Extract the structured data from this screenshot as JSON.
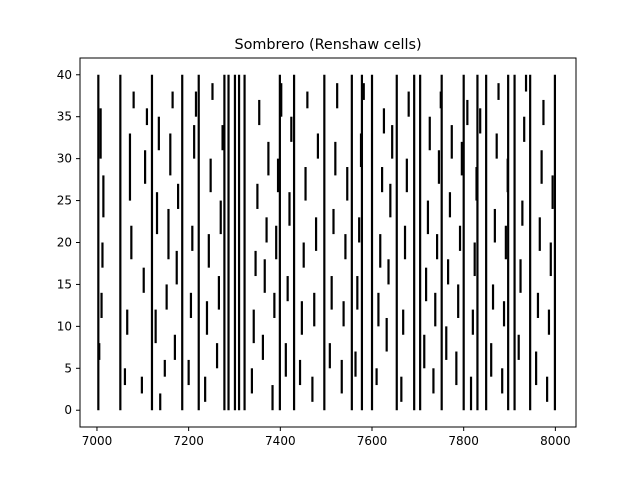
{
  "chart_data": {
    "type": "scatter",
    "marker": "vertical-line",
    "title": "Sombrero (Renshaw cells)",
    "xlabel": "",
    "ylabel": "",
    "xlim": [
      6963,
      8045
    ],
    "ylim": [
      -2,
      42
    ],
    "xticks": [
      7000,
      7200,
      7400,
      7600,
      7800,
      8000
    ],
    "yticks": [
      0,
      5,
      10,
      15,
      20,
      25,
      30,
      35,
      40
    ],
    "grid": false,
    "legend": "none",
    "color": "#000000",
    "events_per_neuron_line": [
      {
        "neurons": [
          0,
          40
        ],
        "times": [
          7003,
          7051,
          7186,
          7222,
          7287,
          7301,
          7322,
          7399,
          7496,
          7556,
          7600,
          7654,
          7705,
          7752,
          7800,
          7849,
          7897,
          7945,
          7999
        ]
      },
      {
        "neurons": [
          0,
          40
        ],
        "times": [
          7120,
          7278,
          7310,
          7430,
          7578,
          7692,
          7830,
          7911
        ]
      }
    ],
    "events_scatter": [
      [
        7005,
        6,
        8
      ],
      [
        7008,
        30,
        36
      ],
      [
        7010,
        11,
        14
      ],
      [
        7012,
        17,
        20
      ],
      [
        7014,
        23,
        28
      ],
      [
        7061,
        3,
        5
      ],
      [
        7066,
        9,
        12
      ],
      [
        7072,
        25,
        33
      ],
      [
        7075,
        18,
        22
      ],
      [
        7080,
        36,
        38
      ],
      [
        7098,
        2,
        4
      ],
      [
        7102,
        14,
        17
      ],
      [
        7105,
        27,
        31
      ],
      [
        7109,
        34,
        36
      ],
      [
        7128,
        8,
        12
      ],
      [
        7131,
        21,
        26
      ],
      [
        7135,
        31,
        35
      ],
      [
        7138,
        0,
        2
      ],
      [
        7148,
        4,
        6
      ],
      [
        7152,
        12,
        15
      ],
      [
        7156,
        18,
        24
      ],
      [
        7160,
        28,
        33
      ],
      [
        7165,
        36,
        38
      ],
      [
        7170,
        6,
        9
      ],
      [
        7174,
        15,
        19
      ],
      [
        7177,
        24,
        27
      ],
      [
        7200,
        3,
        6
      ],
      [
        7205,
        11,
        14
      ],
      [
        7208,
        19,
        22
      ],
      [
        7212,
        30,
        34
      ],
      [
        7216,
        35,
        38
      ],
      [
        7236,
        1,
        4
      ],
      [
        7240,
        9,
        13
      ],
      [
        7244,
        17,
        21
      ],
      [
        7248,
        26,
        30
      ],
      [
        7252,
        37,
        39
      ],
      [
        7262,
        5,
        8
      ],
      [
        7266,
        12,
        16
      ],
      [
        7270,
        21,
        25
      ],
      [
        7274,
        31,
        34
      ],
      [
        7338,
        2,
        5
      ],
      [
        7342,
        8,
        12
      ],
      [
        7346,
        16,
        19
      ],
      [
        7350,
        24,
        27
      ],
      [
        7354,
        34,
        37
      ],
      [
        7362,
        6,
        9
      ],
      [
        7366,
        14,
        18
      ],
      [
        7370,
        20,
        23
      ],
      [
        7374,
        28,
        32
      ],
      [
        7383,
        0,
        3
      ],
      [
        7387,
        11,
        14
      ],
      [
        7391,
        18,
        22
      ],
      [
        7395,
        26,
        30
      ],
      [
        7402,
        35,
        39
      ],
      [
        7412,
        4,
        8
      ],
      [
        7416,
        13,
        16
      ],
      [
        7420,
        22,
        26
      ],
      [
        7424,
        32,
        35
      ],
      [
        7443,
        3,
        6
      ],
      [
        7447,
        9,
        13
      ],
      [
        7451,
        17,
        20
      ],
      [
        7455,
        25,
        29
      ],
      [
        7459,
        36,
        38
      ],
      [
        7470,
        1,
        4
      ],
      [
        7474,
        10,
        14
      ],
      [
        7478,
        19,
        23
      ],
      [
        7482,
        30,
        33
      ],
      [
        7508,
        5,
        8
      ],
      [
        7512,
        12,
        16
      ],
      [
        7516,
        21,
        24
      ],
      [
        7520,
        28,
        32
      ],
      [
        7524,
        36,
        39
      ],
      [
        7534,
        2,
        6
      ],
      [
        7538,
        10,
        13
      ],
      [
        7542,
        18,
        21
      ],
      [
        7546,
        25,
        29
      ],
      [
        7564,
        4,
        7
      ],
      [
        7568,
        12,
        16
      ],
      [
        7572,
        20,
        23
      ],
      [
        7576,
        29,
        33
      ],
      [
        7582,
        37,
        39
      ],
      [
        7610,
        3,
        5
      ],
      [
        7614,
        10,
        14
      ],
      [
        7618,
        17,
        21
      ],
      [
        7622,
        26,
        29
      ],
      [
        7626,
        33,
        36
      ],
      [
        7632,
        7,
        11
      ],
      [
        7636,
        15,
        18
      ],
      [
        7640,
        23,
        27
      ],
      [
        7644,
        30,
        34
      ],
      [
        7664,
        1,
        4
      ],
      [
        7668,
        9,
        12
      ],
      [
        7672,
        18,
        22
      ],
      [
        7676,
        26,
        30
      ],
      [
        7680,
        35,
        38
      ],
      [
        7714,
        5,
        9
      ],
      [
        7718,
        13,
        17
      ],
      [
        7722,
        21,
        25
      ],
      [
        7726,
        31,
        35
      ],
      [
        7734,
        2,
        5
      ],
      [
        7738,
        10,
        14
      ],
      [
        7742,
        18,
        21
      ],
      [
        7746,
        27,
        31
      ],
      [
        7750,
        36,
        38
      ],
      [
        7762,
        6,
        10
      ],
      [
        7766,
        15,
        18
      ],
      [
        7770,
        23,
        26
      ],
      [
        7774,
        30,
        34
      ],
      [
        7784,
        3,
        7
      ],
      [
        7788,
        11,
        15
      ],
      [
        7792,
        19,
        22
      ],
      [
        7796,
        28,
        32
      ],
      [
        7808,
        34,
        37
      ],
      [
        7816,
        0,
        4
      ],
      [
        7820,
        9,
        12
      ],
      [
        7824,
        16,
        20
      ],
      [
        7828,
        25,
        29
      ],
      [
        7836,
        33,
        36
      ],
      [
        7860,
        4,
        8
      ],
      [
        7864,
        12,
        15
      ],
      [
        7868,
        20,
        24
      ],
      [
        7872,
        30,
        33
      ],
      [
        7876,
        37,
        39
      ],
      [
        7884,
        2,
        5
      ],
      [
        7888,
        10,
        13
      ],
      [
        7892,
        18,
        22
      ],
      [
        7896,
        26,
        30
      ],
      [
        7920,
        6,
        9
      ],
      [
        7924,
        14,
        18
      ],
      [
        7928,
        22,
        25
      ],
      [
        7932,
        32,
        35
      ],
      [
        7936,
        38,
        40
      ],
      [
        7958,
        3,
        7
      ],
      [
        7962,
        11,
        14
      ],
      [
        7966,
        19,
        23
      ],
      [
        7970,
        27,
        31
      ],
      [
        7974,
        34,
        37
      ],
      [
        7982,
        1,
        4
      ],
      [
        7986,
        9,
        12
      ],
      [
        7990,
        16,
        20
      ],
      [
        7994,
        24,
        28
      ]
    ]
  }
}
